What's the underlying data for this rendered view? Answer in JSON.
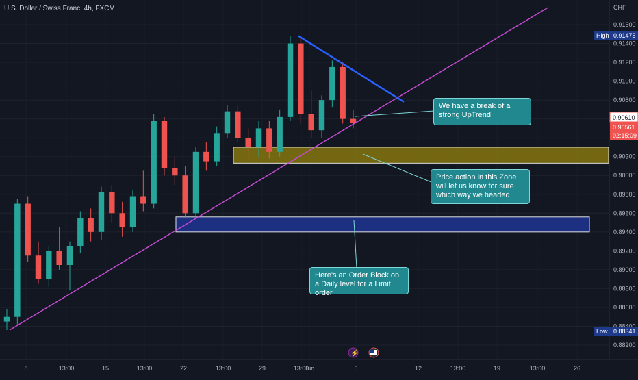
{
  "symbol_title": "U.S. Dollar / Swiss Franc, 4h, FXCM",
  "currency": "CHF",
  "price_scale": {
    "ticks": [
      "0.91600",
      "0.91400",
      "0.91200",
      "0.91000",
      "0.90800",
      "0.90600",
      "0.90400",
      "0.90200",
      "0.90000",
      "0.89800",
      "0.89600",
      "0.89400",
      "0.89200",
      "0.89000",
      "0.88800",
      "0.88600",
      "0.88400",
      "0.88200"
    ],
    "high_label": "High",
    "high_value": "0.91475",
    "low_label": "Low",
    "low_value": "0.88341",
    "last_value": "0.90610",
    "current_value": "0.90561",
    "countdown": "02:15:09"
  },
  "time_labels": [
    "8",
    "13:00",
    "15",
    "13:00",
    "22",
    "13:00",
    "29",
    "13:00",
    "Jun",
    "6",
    "12",
    "13:00",
    "19",
    "13:00",
    "26"
  ],
  "annotations": {
    "break": "We have a break of a strong UpTrend",
    "zone": "Price action in this Zone will let us know for sure which way we headed",
    "order_block": "Here's an Order Block on a Daily level for a Limit order"
  },
  "colors": {
    "background": "#131722",
    "bull": "#26a69a",
    "bear": "#ef5350",
    "trendline": "#c34bd1",
    "resistance": "#2962ff",
    "zone_fill": "#807010",
    "order_block_fill": "#1c2f80",
    "callout": "#22888f"
  },
  "chart_data": {
    "type": "candlestick",
    "title": "U.S. Dollar / Swiss Franc, 4h, FXCM",
    "ylim": [
      0.881,
      0.9178
    ],
    "y_unit": "CHF",
    "candles": [
      {
        "o": 0.8845,
        "h": 0.8858,
        "l": 0.8836,
        "c": 0.885
      },
      {
        "o": 0.885,
        "h": 0.8975,
        "l": 0.8842,
        "c": 0.897
      },
      {
        "o": 0.897,
        "h": 0.8978,
        "l": 0.8908,
        "c": 0.8915
      },
      {
        "o": 0.8915,
        "h": 0.893,
        "l": 0.8885,
        "c": 0.889
      },
      {
        "o": 0.889,
        "h": 0.8925,
        "l": 0.8882,
        "c": 0.892
      },
      {
        "o": 0.892,
        "h": 0.8945,
        "l": 0.89,
        "c": 0.8905
      },
      {
        "o": 0.8905,
        "h": 0.893,
        "l": 0.8878,
        "c": 0.8925
      },
      {
        "o": 0.8925,
        "h": 0.8962,
        "l": 0.8918,
        "c": 0.8955
      },
      {
        "o": 0.8955,
        "h": 0.8965,
        "l": 0.893,
        "c": 0.894
      },
      {
        "o": 0.894,
        "h": 0.8988,
        "l": 0.8932,
        "c": 0.8982
      },
      {
        "o": 0.8982,
        "h": 0.899,
        "l": 0.895,
        "c": 0.896
      },
      {
        "o": 0.896,
        "h": 0.8972,
        "l": 0.8935,
        "c": 0.8945
      },
      {
        "o": 0.8945,
        "h": 0.8985,
        "l": 0.894,
        "c": 0.8978
      },
      {
        "o": 0.8978,
        "h": 0.9005,
        "l": 0.8962,
        "c": 0.897
      },
      {
        "o": 0.897,
        "h": 0.9065,
        "l": 0.8965,
        "c": 0.9058
      },
      {
        "o": 0.9058,
        "h": 0.9062,
        "l": 0.9,
        "c": 0.9008
      },
      {
        "o": 0.9008,
        "h": 0.902,
        "l": 0.899,
        "c": 0.9
      },
      {
        "o": 0.9,
        "h": 0.901,
        "l": 0.8955,
        "c": 0.896
      },
      {
        "o": 0.896,
        "h": 0.903,
        "l": 0.8955,
        "c": 0.9025
      },
      {
        "o": 0.9025,
        "h": 0.9035,
        "l": 0.9005,
        "c": 0.9015
      },
      {
        "o": 0.9015,
        "h": 0.9052,
        "l": 0.901,
        "c": 0.9045
      },
      {
        "o": 0.9045,
        "h": 0.9075,
        "l": 0.904,
        "c": 0.9068
      },
      {
        "o": 0.9068,
        "h": 0.9074,
        "l": 0.9035,
        "c": 0.904
      },
      {
        "o": 0.904,
        "h": 0.905,
        "l": 0.9018,
        "c": 0.903
      },
      {
        "o": 0.903,
        "h": 0.9058,
        "l": 0.902,
        "c": 0.905
      },
      {
        "o": 0.905,
        "h": 0.9058,
        "l": 0.9018,
        "c": 0.9025
      },
      {
        "o": 0.9025,
        "h": 0.907,
        "l": 0.902,
        "c": 0.9062
      },
      {
        "o": 0.9062,
        "h": 0.9148,
        "l": 0.9058,
        "c": 0.914
      },
      {
        "o": 0.914,
        "h": 0.9147,
        "l": 0.9055,
        "c": 0.9065
      },
      {
        "o": 0.9065,
        "h": 0.909,
        "l": 0.904,
        "c": 0.9048
      },
      {
        "o": 0.9048,
        "h": 0.9085,
        "l": 0.904,
        "c": 0.908
      },
      {
        "o": 0.908,
        "h": 0.9122,
        "l": 0.9072,
        "c": 0.9115
      },
      {
        "o": 0.9115,
        "h": 0.912,
        "l": 0.9055,
        "c": 0.906
      },
      {
        "o": 0.906,
        "h": 0.907,
        "l": 0.905,
        "c": 0.9056
      }
    ],
    "drawings": {
      "uptrend_line": [
        {
          "time": "before 8",
          "price": 0.8836
        },
        {
          "time": "after 13:00",
          "price": 0.9178
        }
      ],
      "resistance_line": [
        {
          "price": 0.9148
        },
        {
          "price": 0.9078
        }
      ],
      "zone": {
        "from": 0.9013,
        "to": 0.903
      },
      "order_block": {
        "from": 0.894,
        "to": 0.8956
      }
    }
  }
}
